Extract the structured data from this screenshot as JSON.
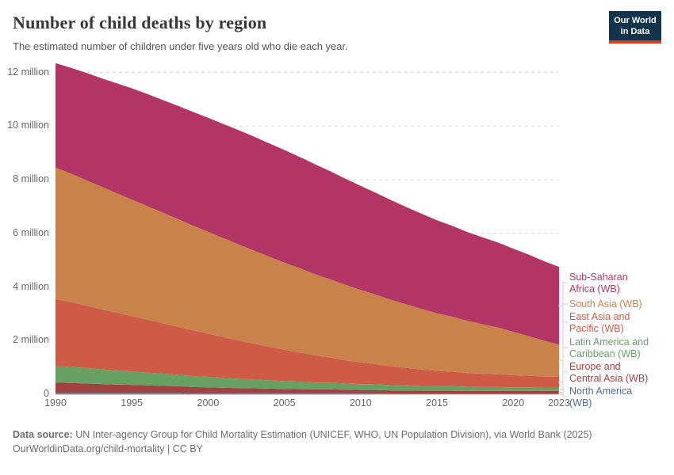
{
  "header": {
    "title": "Number of child deaths by region",
    "subtitle": "The estimated number of children under five years old who die each year."
  },
  "logo": {
    "line1": "Our World",
    "line2": "in Data",
    "bg_color": "#12344b",
    "accent_color": "#dc3d1f"
  },
  "chart_data": {
    "type": "area",
    "stacked": true,
    "title": "Number of child deaths by region",
    "unit": "child deaths per year (millions)",
    "grid": "dashed-horizontal",
    "legend_position": "right",
    "ylim": [
      0,
      12.4
    ],
    "x": [
      1990,
      1991,
      1992,
      1993,
      1994,
      1995,
      1996,
      1997,
      1998,
      1999,
      2000,
      2001,
      2002,
      2003,
      2004,
      2005,
      2006,
      2007,
      2008,
      2009,
      2010,
      2011,
      2012,
      2013,
      2014,
      2015,
      2016,
      2017,
      2018,
      2019,
      2020,
      2021,
      2022,
      2023
    ],
    "xticks": [
      1990,
      1995,
      2000,
      2005,
      2010,
      2015,
      2020,
      2023
    ],
    "yticks": {
      "values": [
        0,
        2,
        4,
        6,
        8,
        10,
        12
      ],
      "labels": [
        "0",
        "2 million",
        "4 million",
        "6 million",
        "8 million",
        "10 million",
        "12 million"
      ]
    },
    "series": [
      {
        "id": "north-america",
        "name": "North America (WB)",
        "color": "#4c6a9c",
        "values": [
          0.05,
          0.05,
          0.05,
          0.05,
          0.05,
          0.05,
          0.05,
          0.05,
          0.05,
          0.04,
          0.04,
          0.04,
          0.04,
          0.04,
          0.04,
          0.04,
          0.04,
          0.04,
          0.04,
          0.04,
          0.04,
          0.04,
          0.03,
          0.03,
          0.03,
          0.03,
          0.03,
          0.03,
          0.03,
          0.03,
          0.03,
          0.03,
          0.03,
          0.03
        ]
      },
      {
        "id": "europe-central-asia",
        "name": "Europe and Central Asia (WB)",
        "color": "#a04240",
        "values": [
          0.38,
          0.37,
          0.35,
          0.33,
          0.31,
          0.3,
          0.28,
          0.26,
          0.25,
          0.23,
          0.22,
          0.2,
          0.19,
          0.18,
          0.17,
          0.16,
          0.15,
          0.14,
          0.14,
          0.13,
          0.12,
          0.12,
          0.11,
          0.11,
          0.1,
          0.1,
          0.1,
          0.09,
          0.09,
          0.09,
          0.09,
          0.09,
          0.09,
          0.09
        ]
      },
      {
        "id": "latin-america-caribbean",
        "name": "Latin America and Caribbean (WB)",
        "color": "#68a064",
        "values": [
          0.62,
          0.6,
          0.58,
          0.55,
          0.53,
          0.5,
          0.48,
          0.46,
          0.43,
          0.41,
          0.39,
          0.37,
          0.35,
          0.33,
          0.31,
          0.29,
          0.28,
          0.26,
          0.25,
          0.23,
          0.22,
          0.21,
          0.2,
          0.19,
          0.18,
          0.17,
          0.17,
          0.16,
          0.15,
          0.15,
          0.14,
          0.14,
          0.13,
          0.13
        ]
      },
      {
        "id": "east-asia-pacific",
        "name": "East Asia and Pacific (WB)",
        "color": "#cd5b45",
        "values": [
          2.5,
          2.42,
          2.33,
          2.24,
          2.15,
          2.06,
          1.97,
          1.88,
          1.79,
          1.7,
          1.61,
          1.52,
          1.43,
          1.34,
          1.25,
          1.17,
          1.09,
          1.01,
          0.94,
          0.87,
          0.81,
          0.75,
          0.7,
          0.65,
          0.61,
          0.57,
          0.54,
          0.51,
          0.49,
          0.47,
          0.45,
          0.43,
          0.41,
          0.4
        ]
      },
      {
        "id": "south-asia",
        "name": "South Asia (WB)",
        "color": "#c9834a",
        "values": [
          4.9,
          4.79,
          4.68,
          4.57,
          4.46,
          4.35,
          4.24,
          4.13,
          4.02,
          3.91,
          3.8,
          3.69,
          3.58,
          3.47,
          3.36,
          3.25,
          3.14,
          3.03,
          2.92,
          2.81,
          2.7,
          2.59,
          2.48,
          2.37,
          2.26,
          2.15,
          2.05,
          1.95,
          1.85,
          1.75,
          1.62,
          1.48,
          1.34,
          1.2
        ]
      },
      {
        "id": "sub-saharan-africa",
        "name": "Sub-Saharan Africa (WB)",
        "color": "#b23665",
        "values": [
          3.9,
          3.95,
          4.0,
          4.05,
          4.1,
          4.15,
          4.18,
          4.2,
          4.22,
          4.24,
          4.25,
          4.26,
          4.26,
          4.25,
          4.23,
          4.2,
          4.15,
          4.1,
          4.03,
          3.96,
          3.88,
          3.8,
          3.72,
          3.63,
          3.55,
          3.47,
          3.39,
          3.31,
          3.24,
          3.17,
          3.1,
          3.04,
          2.97,
          2.9
        ]
      }
    ]
  },
  "footer": {
    "source_label": "Data source:",
    "source_text": " UN Inter-agency Group for Child Mortality Estimation (UNICEF, WHO, UN Population Division), via World Bank (2025)",
    "license_text": "OurWorldinData.org/child-mortality | CC BY"
  }
}
